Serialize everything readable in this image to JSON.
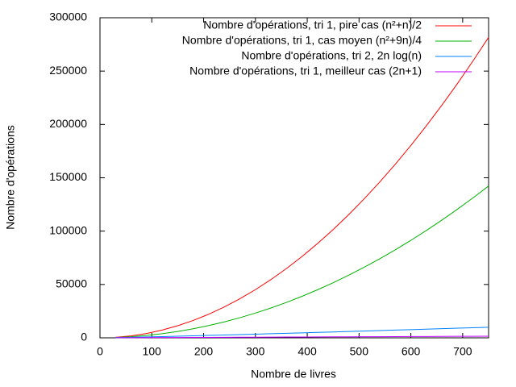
{
  "chart_data": {
    "type": "line",
    "xlabel": "Nombre de livres",
    "ylabel": "Nombre d'opérations",
    "legend": "top-right",
    "xlim": [
      0,
      750
    ],
    "ylim": [
      0,
      300000
    ],
    "xticks": [
      0,
      100,
      200,
      300,
      400,
      500,
      600,
      700
    ],
    "yticks": [
      0,
      50000,
      100000,
      150000,
      200000,
      250000,
      300000
    ],
    "x": [
      30,
      60,
      90,
      120,
      150,
      180,
      210,
      240,
      270,
      300,
      330,
      360,
      390,
      420,
      450,
      480,
      510,
      540,
      570,
      600,
      630,
      660,
      690,
      720,
      750
    ],
    "series": [
      {
        "name": "Nombre d'opérations, tri 1, pire cas (n²+n)/2",
        "color": "#ff0000",
        "values": [
          465,
          1830,
          4095,
          7260,
          11325,
          16290,
          22155,
          28920,
          36585,
          45150,
          54615,
          64980,
          76245,
          88410,
          101475,
          115440,
          130305,
          146070,
          162735,
          180300,
          198765,
          218130,
          238395,
          259560,
          281625
        ]
      },
      {
        "name": "Nombre d'opérations, tri 1, cas moyen (n²+9n)/4",
        "color": "#00b000",
        "values": [
          292.5,
          1035,
          2227.5,
          3870,
          5962.5,
          8505,
          11497.5,
          14940,
          18832.5,
          23175,
          27967.5,
          33210,
          38902.5,
          45045,
          51637.5,
          58680,
          66172.5,
          74115,
          82507.5,
          91350,
          100642.5,
          110385,
          120577.5,
          131220,
          142312.5
        ]
      },
      {
        "name": "Nombre d'opérations, tri 2, 2n log(n)",
        "color": "#0080ff",
        "values": [
          204,
          491,
          810,
          1149,
          1503,
          1870,
          2246,
          2631,
          3023,
          3422,
          3827,
          4238,
          4653,
          5074,
          5498,
          5927,
          6359,
          6795,
          7234,
          7676,
          8122,
          8570,
          9021,
          9474,
          9930
        ]
      },
      {
        "name": "Nombre d'opérations, tri 1, meilleur cas (2n+1)",
        "color": "#c000ff",
        "values": [
          61,
          121,
          181,
          241,
          301,
          361,
          421,
          481,
          541,
          601,
          661,
          721,
          781,
          841,
          901,
          961,
          1021,
          1081,
          1141,
          1201,
          1261,
          1321,
          1381,
          1441,
          1501
        ]
      }
    ]
  }
}
